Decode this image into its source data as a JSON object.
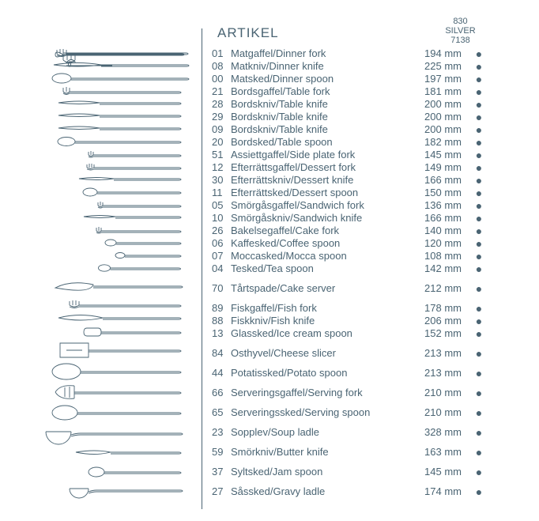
{
  "colors": {
    "text": "#4a6473",
    "background": "#ffffff",
    "stroke": "#4a6473"
  },
  "header": {
    "title": "ARTIKEL",
    "column_label_line1": "830",
    "column_label_line2": "SILVER",
    "column_label_line3": "7138"
  },
  "unit": "mm",
  "dot": "●",
  "groups": [
    {
      "items": [
        {
          "code": "01",
          "name": "Matgaffel/Dinner fork",
          "size": 194,
          "avail": true
        },
        {
          "code": "08",
          "name": "Matkniv/Dinner knife",
          "size": 225,
          "avail": true
        },
        {
          "code": "00",
          "name": "Matsked/Dinner spoon",
          "size": 197,
          "avail": true
        },
        {
          "code": "21",
          "name": "Bordsgaffel/Table fork",
          "size": 181,
          "avail": true
        },
        {
          "code": "28",
          "name": "Bordskniv/Table knife",
          "size": 200,
          "avail": true
        },
        {
          "code": "29",
          "name": "Bordskniv/Table knife",
          "size": 200,
          "avail": true
        },
        {
          "code": "09",
          "name": "Bordskniv/Table knife",
          "size": 200,
          "avail": true
        },
        {
          "code": "20",
          "name": "Bordsked/Table spoon",
          "size": 182,
          "avail": true
        },
        {
          "code": "51",
          "name": "Assiettgaffel/Side plate fork",
          "size": 145,
          "avail": true
        },
        {
          "code": "12",
          "name": "Efterrättsgaffel/Dessert fork",
          "size": 149,
          "avail": true
        },
        {
          "code": "30",
          "name": "Efterrättskniv/Dessert knife",
          "size": 166,
          "avail": true
        },
        {
          "code": "11",
          "name": "Efterrättsked/Dessert spoon",
          "size": 150,
          "avail": true
        },
        {
          "code": "05",
          "name": "Smörgåsgaffel/Sandwich fork",
          "size": 136,
          "avail": true
        },
        {
          "code": "10",
          "name": "Smörgåskniv/Sandwich knife",
          "size": 166,
          "avail": true
        },
        {
          "code": "26",
          "name": "Bakelsegaffel/Cake fork",
          "size": 140,
          "avail": true
        },
        {
          "code": "06",
          "name": "Kaffesked/Coffee spoon",
          "size": 120,
          "avail": true
        },
        {
          "code": "07",
          "name": "Moccasked/Mocca spoon",
          "size": 108,
          "avail": true
        },
        {
          "code": "04",
          "name": "Tesked/Tea spoon",
          "size": 142,
          "avail": true
        }
      ]
    },
    {
      "items": [
        {
          "code": "70",
          "name": "Tårtspade/Cake server",
          "size": 212,
          "avail": true
        }
      ]
    },
    {
      "items": [
        {
          "code": "89",
          "name": "Fiskgaffel/Fish fork",
          "size": 178,
          "avail": true
        },
        {
          "code": "88",
          "name": "Fiskkniv/Fish knife",
          "size": 206,
          "avail": true
        },
        {
          "code": "13",
          "name": "Glassked/Ice cream spoon",
          "size": 152,
          "avail": true
        }
      ]
    },
    {
      "items": [
        {
          "code": "84",
          "name": "Osthyvel/Cheese slicer",
          "size": 213,
          "avail": true
        }
      ]
    },
    {
      "items": [
        {
          "code": "44",
          "name": "Potatissked/Potato spoon",
          "size": 213,
          "avail": true
        }
      ]
    },
    {
      "items": [
        {
          "code": "66",
          "name": "Serveringsgaffel/Serving fork",
          "size": 210,
          "avail": true
        }
      ]
    },
    {
      "items": [
        {
          "code": "65",
          "name": "Serveringssked/Serving spoon",
          "size": 210,
          "avail": true
        }
      ]
    },
    {
      "items": [
        {
          "code": "23",
          "name": "Sopplev/Soup ladle",
          "size": 328,
          "avail": true
        }
      ]
    },
    {
      "items": [
        {
          "code": "59",
          "name": "Smörkniv/Butter knife",
          "size": 163,
          "avail": true
        }
      ]
    },
    {
      "items": [
        {
          "code": "37",
          "name": "Syltsked/Jam spoon",
          "size": 145,
          "avail": true
        }
      ]
    },
    {
      "items": [
        {
          "code": "27",
          "name": "Såssked/Gravy ladle",
          "size": 174,
          "avail": true
        }
      ]
    }
  ]
}
